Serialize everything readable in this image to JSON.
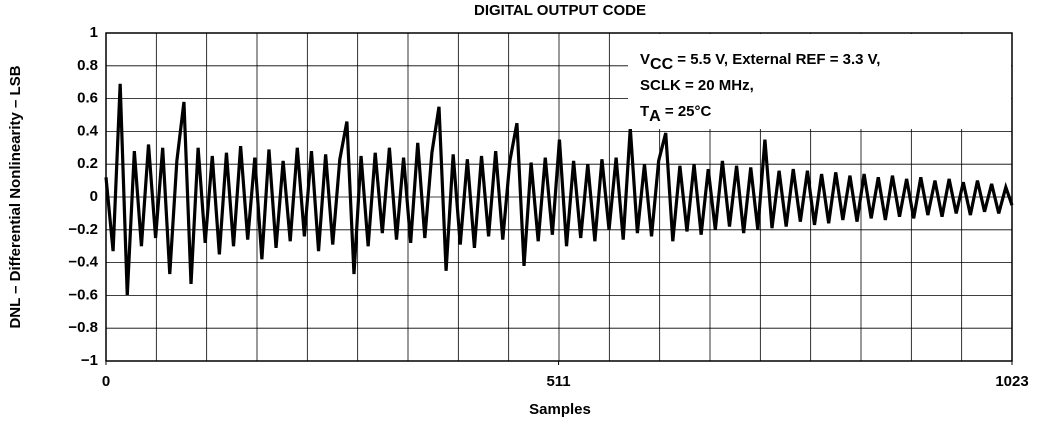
{
  "chart_data": {
    "type": "line",
    "title": "DIGITAL OUTPUT CODE",
    "xlabel": "Samples",
    "ylabel": "DNL – Differential Nonlinearity – LSB",
    "annotation": [
      {
        "main": "V",
        "sub": "CC",
        "rest": " = 5.5 V, External REF = 3.3 V,"
      },
      {
        "main": "SCLK = 20 MHz,"
      },
      {
        "main": "T",
        "sub": "A",
        "rest": " = 25°C"
      }
    ],
    "grid": true,
    "xlim": [
      0,
      1023
    ],
    "ylim": [
      -1,
      1
    ],
    "xticks": [
      0,
      511,
      1023
    ],
    "yticks": [
      {
        "value": -1,
        "label": "−1"
      },
      {
        "value": -0.8,
        "label": "−0.8"
      },
      {
        "value": -0.6,
        "label": "−0.6"
      },
      {
        "value": -0.4,
        "label": "−0.4"
      },
      {
        "value": -0.2,
        "label": "−0.2"
      },
      0,
      0.2,
      0.4,
      0.6,
      0.8,
      1
    ],
    "x": [
      0,
      8,
      16,
      24,
      32,
      40,
      48,
      56,
      64,
      72,
      80,
      88,
      96,
      104,
      112,
      120,
      128,
      136,
      144,
      152,
      160,
      168,
      176,
      184,
      192,
      200,
      208,
      216,
      224,
      232,
      240,
      248,
      256,
      264,
      272,
      280,
      288,
      296,
      304,
      312,
      320,
      328,
      336,
      344,
      352,
      360,
      368,
      376,
      384,
      392,
      400,
      408,
      416,
      424,
      432,
      440,
      448,
      456,
      464,
      472,
      480,
      488,
      496,
      504,
      512,
      520,
      528,
      536,
      544,
      552,
      560,
      568,
      576,
      584,
      592,
      600,
      608,
      616,
      624,
      632,
      640,
      648,
      656,
      664,
      672,
      680,
      688,
      696,
      704,
      712,
      720,
      728,
      736,
      744,
      752,
      760,
      768,
      776,
      784,
      792,
      800,
      808,
      816,
      824,
      832,
      840,
      848,
      856,
      864,
      872,
      880,
      888,
      896,
      904,
      912,
      920,
      928,
      936,
      944,
      952,
      960,
      968,
      976,
      984,
      992,
      1000,
      1008,
      1016,
      1023
    ],
    "series": [
      {
        "name": "DNL",
        "color": "#000000",
        "values": [
          0.12,
          -0.33,
          0.69,
          -0.6,
          0.28,
          -0.3,
          0.32,
          -0.25,
          0.3,
          -0.47,
          0.22,
          0.58,
          -0.53,
          0.3,
          -0.28,
          0.25,
          -0.35,
          0.27,
          -0.3,
          0.31,
          -0.26,
          0.24,
          -0.38,
          0.29,
          -0.31,
          0.22,
          -0.27,
          0.3,
          -0.24,
          0.28,
          -0.33,
          0.26,
          -0.29,
          0.23,
          0.46,
          -0.47,
          0.25,
          -0.3,
          0.27,
          -0.22,
          0.3,
          -0.26,
          0.24,
          -0.28,
          0.33,
          -0.25,
          0.27,
          0.55,
          -0.45,
          0.26,
          -0.29,
          0.23,
          -0.31,
          0.25,
          -0.24,
          0.28,
          -0.26,
          0.22,
          0.45,
          -0.42,
          0.21,
          -0.27,
          0.24,
          -0.23,
          0.35,
          -0.3,
          0.22,
          -0.25,
          0.2,
          -0.27,
          0.23,
          -0.2,
          0.24,
          -0.26,
          0.42,
          -0.22,
          0.2,
          -0.24,
          0.22,
          0.39,
          -0.27,
          0.19,
          -0.21,
          0.2,
          -0.23,
          0.17,
          -0.2,
          0.22,
          -0.18,
          0.19,
          -0.22,
          0.18,
          -0.2,
          0.35,
          -0.19,
          0.16,
          -0.18,
          0.17,
          -0.15,
          0.16,
          -0.17,
          0.14,
          -0.16,
          0.15,
          -0.14,
          0.13,
          -0.15,
          0.14,
          -0.13,
          0.12,
          -0.14,
          0.13,
          -0.12,
          0.11,
          -0.13,
          0.12,
          -0.11,
          0.1,
          -0.12,
          0.11,
          -0.1,
          0.09,
          -0.11,
          0.1,
          -0.09,
          0.08,
          -0.1,
          0.06,
          -0.05
        ]
      }
    ]
  }
}
